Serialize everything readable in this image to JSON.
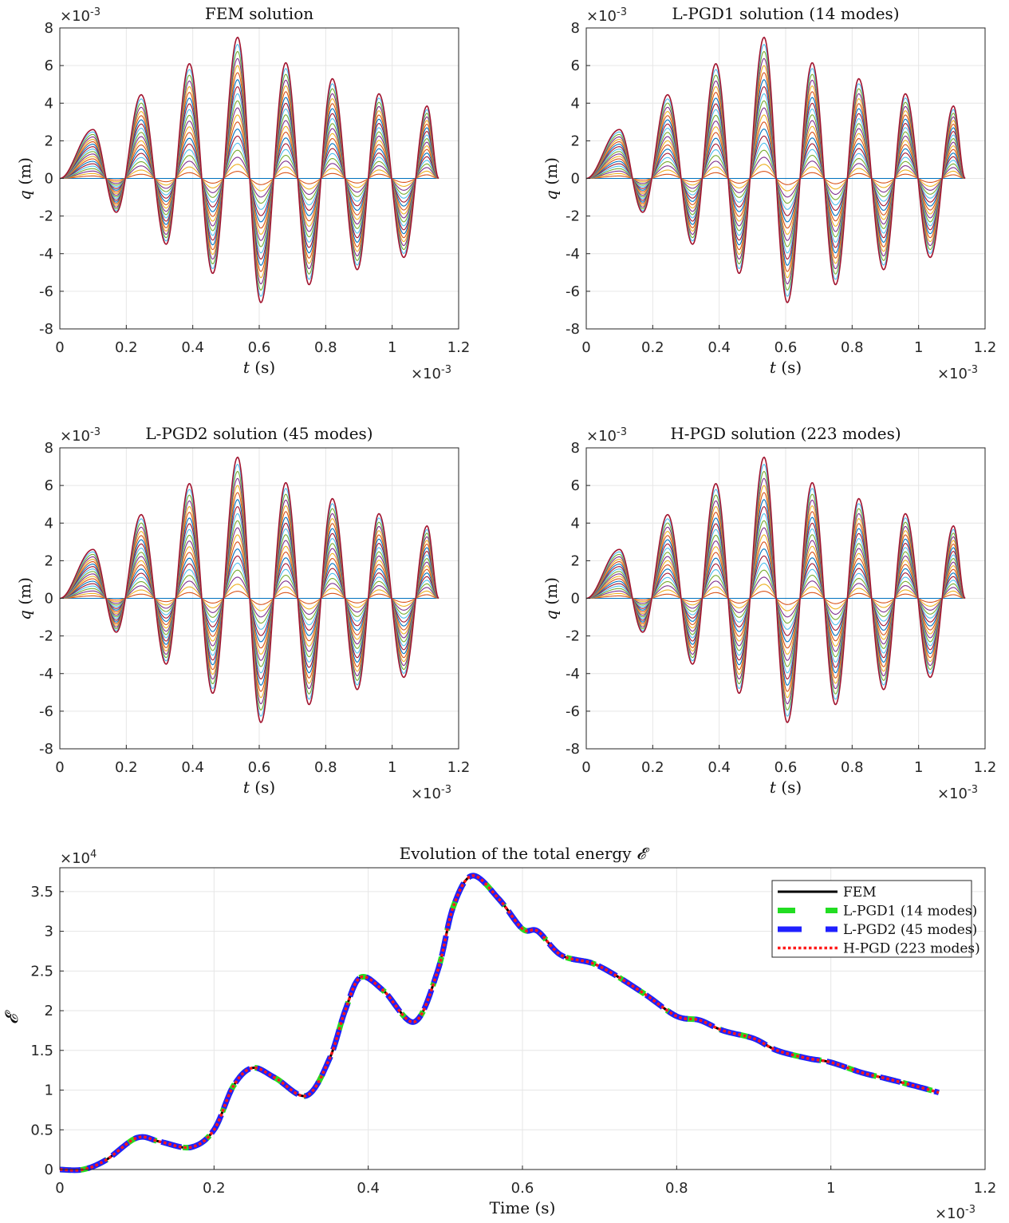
{
  "figure": {
    "panels": [
      {
        "id": "fem",
        "title": "FEM solution",
        "xlabel_var": "t",
        "xlabel_unit": "(s)",
        "ylabel_var": "q",
        "ylabel_unit": "(m)",
        "x_exponent": "×10",
        "x_exponent_power": "-3",
        "y_exponent": "×10",
        "y_exponent_power": "-3"
      },
      {
        "id": "lpgd1",
        "title": "L-PGD1 solution (14 modes)",
        "xlabel_var": "t",
        "xlabel_unit": "(s)",
        "ylabel_var": "q",
        "ylabel_unit": "(m)",
        "x_exponent": "×10",
        "x_exponent_power": "-3",
        "y_exponent": "×10",
        "y_exponent_power": "-3"
      },
      {
        "id": "lpgd2",
        "title": "L-PGD2 solution (45 modes)",
        "xlabel_var": "t",
        "xlabel_unit": "(s)",
        "ylabel_var": "q",
        "ylabel_unit": "(m)",
        "x_exponent": "×10",
        "x_exponent_power": "-3",
        "y_exponent": "×10",
        "y_exponent_power": "-3"
      },
      {
        "id": "hpgd",
        "title": "H-PGD solution (223 modes)",
        "xlabel_var": "t",
        "xlabel_unit": "(s)",
        "ylabel_var": "q",
        "ylabel_unit": "(m)",
        "x_exponent": "×10",
        "x_exponent_power": "-3",
        "y_exponent": "×10",
        "y_exponent_power": "-3"
      }
    ],
    "energy": {
      "title_text": "Evolution of the total energy",
      "title_symbol": "𝓔",
      "xlabel": "Time (s)",
      "ylabel_symbol": "𝓔",
      "x_exponent": "×10",
      "x_exponent_power": "-3",
      "y_exponent": "×10",
      "y_exponent_power": "4"
    }
  },
  "chart_data": [
    {
      "type": "line",
      "title": "FEM solution",
      "xlabel": "t (s)",
      "ylabel": "q (m)",
      "x_scale": "×10^-3",
      "y_scale": "×10^-3",
      "xlim": [
        0,
        1.2
      ],
      "ylim": [
        -8,
        8
      ],
      "xticks": [
        "0",
        "0.2",
        "0.4",
        "0.6",
        "0.8",
        "1",
        "1.2"
      ],
      "yticks": [
        "-8",
        "-6",
        "-4",
        "-2",
        "0",
        "2",
        "4",
        "6",
        "8"
      ],
      "grid": true,
      "series_count": 21,
      "series_description": "family of curves scaled 0 to 1 of the outer envelope",
      "envelope": {
        "x": [
          0,
          0.1,
          0.17,
          0.245,
          0.32,
          0.39,
          0.46,
          0.535,
          0.605,
          0.68,
          0.75,
          0.82,
          0.895,
          0.96,
          1.035,
          1.105,
          1.14
        ],
        "y": [
          0,
          2.6,
          -1.8,
          4.45,
          -3.5,
          6.1,
          -5.05,
          7.5,
          -6.6,
          6.15,
          -5.65,
          5.3,
          -4.85,
          4.5,
          -4.2,
          3.85,
          0
        ]
      },
      "colors": [
        "#0072bd",
        "#d95319",
        "#edb120",
        "#7e2f8e",
        "#77ac30",
        "#4dbeee",
        "#a2142f"
      ]
    },
    {
      "type": "line",
      "title": "L-PGD1 solution (14 modes)",
      "xlabel": "t (s)",
      "ylabel": "q (m)",
      "x_scale": "×10^-3",
      "y_scale": "×10^-3",
      "xlim": [
        0,
        1.2
      ],
      "ylim": [
        -8,
        8
      ],
      "xticks": [
        "0",
        "0.2",
        "0.4",
        "0.6",
        "0.8",
        "1",
        "1.2"
      ],
      "yticks": [
        "-8",
        "-6",
        "-4",
        "-2",
        "0",
        "2",
        "4",
        "6",
        "8"
      ],
      "grid": true,
      "series_count": 21,
      "series_description": "family of curves scaled 0 to 1 of the outer envelope",
      "envelope": {
        "x": [
          0,
          0.1,
          0.17,
          0.245,
          0.32,
          0.39,
          0.46,
          0.535,
          0.605,
          0.68,
          0.75,
          0.82,
          0.895,
          0.96,
          1.035,
          1.105,
          1.14
        ],
        "y": [
          0,
          2.6,
          -1.8,
          4.45,
          -3.5,
          6.1,
          -5.05,
          7.5,
          -6.6,
          6.15,
          -5.65,
          5.3,
          -4.85,
          4.5,
          -4.2,
          3.85,
          0
        ]
      },
      "colors": [
        "#0072bd",
        "#d95319",
        "#edb120",
        "#7e2f8e",
        "#77ac30",
        "#4dbeee",
        "#a2142f"
      ]
    },
    {
      "type": "line",
      "title": "L-PGD2 solution (45 modes)",
      "xlabel": "t (s)",
      "ylabel": "q (m)",
      "x_scale": "×10^-3",
      "y_scale": "×10^-3",
      "xlim": [
        0,
        1.2
      ],
      "ylim": [
        -8,
        8
      ],
      "xticks": [
        "0",
        "0.2",
        "0.4",
        "0.6",
        "0.8",
        "1",
        "1.2"
      ],
      "yticks": [
        "-8",
        "-6",
        "-4",
        "-2",
        "0",
        "2",
        "4",
        "6",
        "8"
      ],
      "grid": true,
      "series_count": 21,
      "series_description": "family of curves scaled 0 to 1 of the outer envelope",
      "envelope": {
        "x": [
          0,
          0.1,
          0.17,
          0.245,
          0.32,
          0.39,
          0.46,
          0.535,
          0.605,
          0.68,
          0.75,
          0.82,
          0.895,
          0.96,
          1.035,
          1.105,
          1.14
        ],
        "y": [
          0,
          2.6,
          -1.8,
          4.45,
          -3.5,
          6.1,
          -5.05,
          7.5,
          -6.6,
          6.15,
          -5.65,
          5.3,
          -4.85,
          4.5,
          -4.2,
          3.85,
          0
        ]
      },
      "colors": [
        "#0072bd",
        "#d95319",
        "#edb120",
        "#7e2f8e",
        "#77ac30",
        "#4dbeee",
        "#a2142f"
      ]
    },
    {
      "type": "line",
      "title": "H-PGD solution (223 modes)",
      "xlabel": "t (s)",
      "ylabel": "q (m)",
      "x_scale": "×10^-3",
      "y_scale": "×10^-3",
      "xlim": [
        0,
        1.2
      ],
      "ylim": [
        -8,
        8
      ],
      "xticks": [
        "0",
        "0.2",
        "0.4",
        "0.6",
        "0.8",
        "1",
        "1.2"
      ],
      "yticks": [
        "-8",
        "-6",
        "-4",
        "-2",
        "0",
        "2",
        "4",
        "6",
        "8"
      ],
      "grid": true,
      "series_count": 21,
      "series_description": "family of curves scaled 0 to 1 of the outer envelope",
      "envelope": {
        "x": [
          0,
          0.1,
          0.17,
          0.245,
          0.32,
          0.39,
          0.46,
          0.535,
          0.605,
          0.68,
          0.75,
          0.82,
          0.895,
          0.96,
          1.035,
          1.105,
          1.14
        ],
        "y": [
          0,
          2.6,
          -1.8,
          4.45,
          -3.5,
          6.1,
          -5.05,
          7.5,
          -6.6,
          6.15,
          -5.65,
          5.3,
          -4.85,
          4.5,
          -4.2,
          3.85,
          0
        ]
      },
      "colors": [
        "#0072bd",
        "#d95319",
        "#edb120",
        "#7e2f8e",
        "#77ac30",
        "#4dbeee",
        "#a2142f"
      ]
    },
    {
      "type": "line",
      "title": "Evolution of the total energy 𝓔",
      "xlabel": "Time (s)",
      "ylabel": "𝓔",
      "x_scale": "×10^-3",
      "y_scale": "×10^4",
      "xlim": [
        0,
        1.2
      ],
      "ylim": [
        0,
        3.8
      ],
      "xticks": [
        "0",
        "0.2",
        "0.4",
        "0.6",
        "0.8",
        "1",
        "1.2"
      ],
      "yticks": [
        "0",
        "0.5",
        "1",
        "1.5",
        "2",
        "2.5",
        "3",
        "3.5"
      ],
      "grid": true,
      "legend_position": "top-right",
      "x": [
        0,
        0.03,
        0.06,
        0.1,
        0.13,
        0.17,
        0.2,
        0.225,
        0.25,
        0.28,
        0.32,
        0.35,
        0.37,
        0.39,
        0.42,
        0.46,
        0.49,
        0.51,
        0.535,
        0.57,
        0.6,
        0.62,
        0.65,
        0.69,
        0.72,
        0.76,
        0.8,
        0.83,
        0.86,
        0.9,
        0.93,
        0.97,
        1.0,
        1.04,
        1.07,
        1.11,
        1.14
      ],
      "series": [
        {
          "name": "FEM",
          "values": [
            0.0,
            0.0,
            0.12,
            0.4,
            0.35,
            0.28,
            0.5,
            1.05,
            1.28,
            1.15,
            0.93,
            1.4,
            2.0,
            2.42,
            2.25,
            1.86,
            2.5,
            3.3,
            3.7,
            3.4,
            3.03,
            3.0,
            2.7,
            2.6,
            2.45,
            2.2,
            1.93,
            1.88,
            1.75,
            1.65,
            1.5,
            1.4,
            1.35,
            1.22,
            1.15,
            1.05,
            0.97
          ],
          "color": "#000000",
          "style": "solid"
        },
        {
          "name": "L-PGD1 (14 modes)",
          "values": [
            0.0,
            0.0,
            0.12,
            0.4,
            0.35,
            0.28,
            0.5,
            1.05,
            1.28,
            1.15,
            0.93,
            1.4,
            2.0,
            2.42,
            2.25,
            1.86,
            2.5,
            3.3,
            3.7,
            3.4,
            3.03,
            3.0,
            2.7,
            2.6,
            2.45,
            2.2,
            1.93,
            1.88,
            1.75,
            1.65,
            1.5,
            1.4,
            1.35,
            1.22,
            1.15,
            1.05,
            0.97
          ],
          "color": "#22dd22",
          "style": "dashed"
        },
        {
          "name": "L-PGD2 (45 modes)",
          "values": [
            0.0,
            0.0,
            0.12,
            0.4,
            0.35,
            0.28,
            0.5,
            1.05,
            1.28,
            1.15,
            0.93,
            1.4,
            2.0,
            2.42,
            2.25,
            1.86,
            2.5,
            3.3,
            3.7,
            3.4,
            3.03,
            3.0,
            2.7,
            2.6,
            2.45,
            2.2,
            1.93,
            1.88,
            1.75,
            1.65,
            1.5,
            1.4,
            1.35,
            1.22,
            1.15,
            1.05,
            0.97
          ],
          "color": "#1f1fff",
          "style": "dashed"
        },
        {
          "name": "H-PGD (223 modes)",
          "values": [
            0.0,
            0.0,
            0.12,
            0.4,
            0.35,
            0.28,
            0.5,
            1.05,
            1.28,
            1.15,
            0.93,
            1.4,
            2.0,
            2.42,
            2.25,
            1.86,
            2.5,
            3.3,
            3.7,
            3.4,
            3.03,
            3.0,
            2.7,
            2.6,
            2.45,
            2.2,
            1.93,
            1.88,
            1.75,
            1.65,
            1.5,
            1.4,
            1.35,
            1.22,
            1.15,
            1.05,
            0.97
          ],
          "color": "#ff1a1a",
          "style": "dotted"
        }
      ]
    }
  ]
}
